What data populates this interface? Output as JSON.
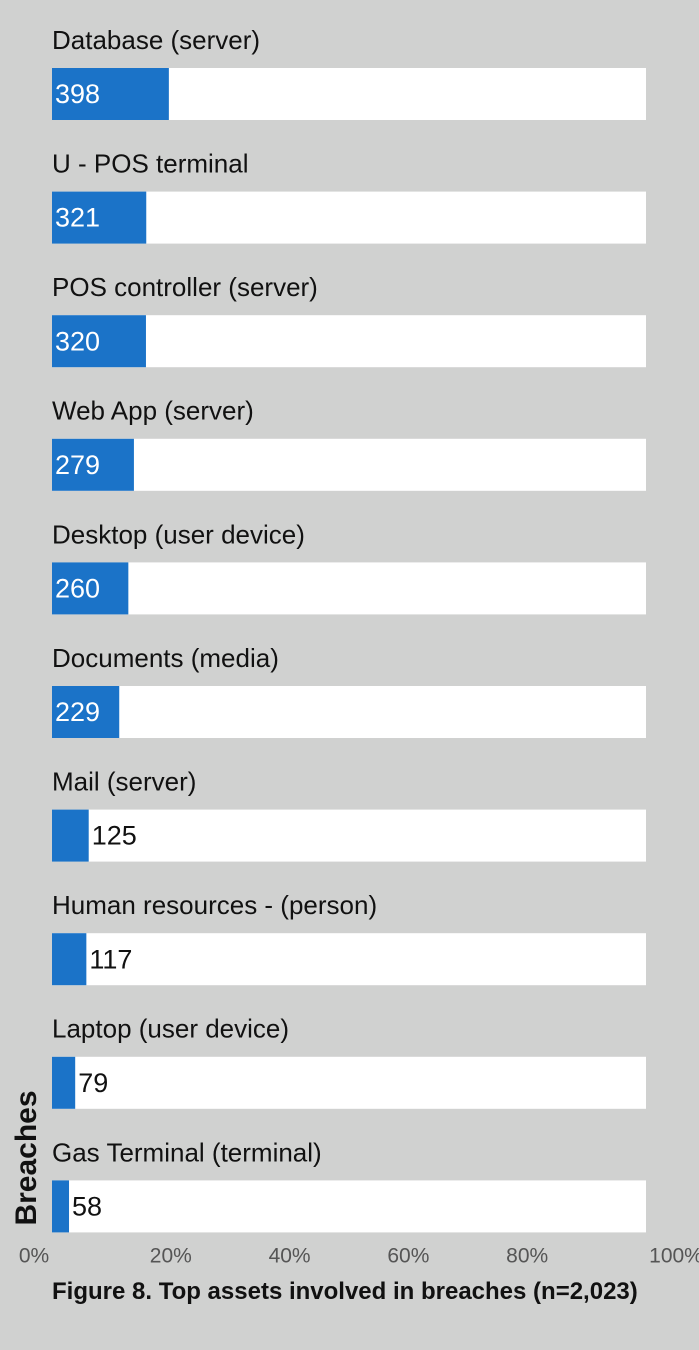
{
  "chart_data": {
    "type": "bar",
    "orientation": "horizontal",
    "title": "Figure 8.  Top assets involved in breaches (n=2,023)",
    "y_label": "Breaches",
    "categories": [
      "Database (server)",
      "U - POS terminal",
      "POS controller (server)",
      "Web App (server)",
      "Desktop (user device)",
      "Documents (media)",
      "Mail (server)",
      "Human resources - (person)",
      "Laptop (user device)",
      "Gas Terminal (terminal)"
    ],
    "values": [
      398,
      321,
      320,
      279,
      260,
      229,
      125,
      117,
      79,
      58
    ],
    "color": "#1b73c8",
    "xlim": [
      0,
      2023
    ],
    "xticks": [
      {
        "value": 0,
        "label": "0%"
      },
      {
        "value": 404.6,
        "label": "20%"
      },
      {
        "value": 809.2,
        "label": "40%"
      },
      {
        "value": 1213.8,
        "label": "60%"
      },
      {
        "value": 1618.4,
        "label": "80%"
      },
      {
        "value": 2023,
        "label": "100%"
      }
    ]
  }
}
